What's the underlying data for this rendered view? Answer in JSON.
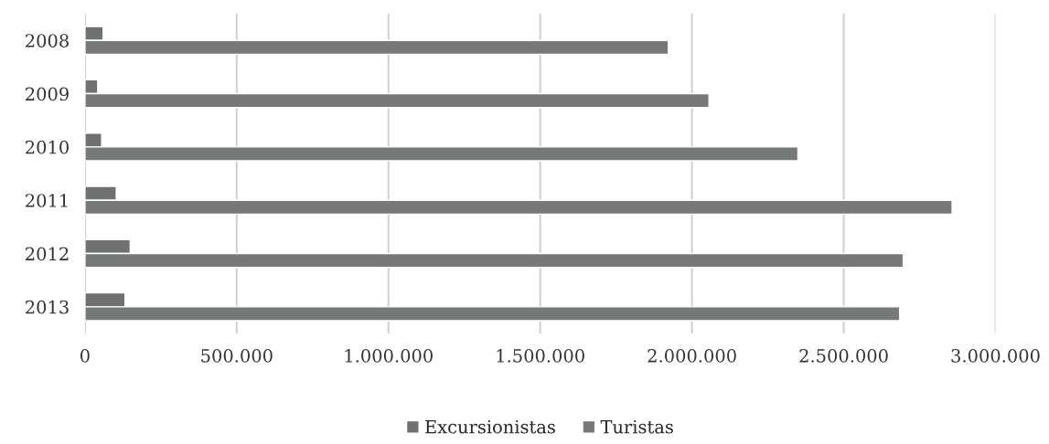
{
  "chart_data": {
    "type": "bar",
    "orientation": "horizontal",
    "categories": [
      "2008",
      "2009",
      "2010",
      "2011",
      "2012",
      "2013"
    ],
    "series": [
      {
        "name": "Excursionistas",
        "color": "#6f7072",
        "values": [
          60000,
          42000,
          55000,
          103000,
          149000,
          132000
        ]
      },
      {
        "name": "Turistas",
        "color": "#77787a",
        "values": [
          1922000,
          2056000,
          2349000,
          2857000,
          2696000,
          2684000
        ]
      }
    ],
    "xlim": [
      0,
      3000000
    ],
    "xticks": [
      0,
      {
        "value": 500000,
        "label": "500.000"
      },
      {
        "value": 1000000,
        "label": "1.000.000"
      },
      {
        "value": 1500000,
        "label": "1.500.000"
      },
      {
        "value": 2000000,
        "label": "2.000.000"
      },
      {
        "value": 2500000,
        "label": "2.500.000"
      },
      {
        "value": 3000000,
        "label": "3.000.000"
      }
    ],
    "grid": "x",
    "legend": "bottom"
  }
}
